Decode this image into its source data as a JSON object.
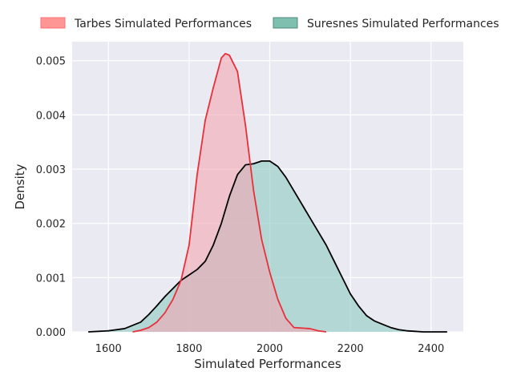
{
  "chart_data": {
    "type": "area",
    "title": "",
    "xlabel": "Simulated Performances",
    "ylabel": "Density",
    "xlim": [
      1510,
      2480
    ],
    "ylim": [
      0,
      0.00535
    ],
    "xticks": [
      1600,
      1800,
      2000,
      2200,
      2400
    ],
    "xtick_labels": [
      "1600",
      "1800",
      "2000",
      "2200",
      "2400"
    ],
    "yticks": [
      0,
      0.001,
      0.002,
      0.003,
      0.004,
      0.005
    ],
    "ytick_labels": [
      "0.000",
      "0.001",
      "0.002",
      "0.003",
      "0.004",
      "0.005"
    ],
    "grid": true,
    "legend_position": "top-center, outside plot",
    "series": [
      {
        "name": "Tarbes Simulated Performances",
        "line_color": "#e8303a",
        "fill_color": "#f4a6b2",
        "fill_opacity": 0.6,
        "legend_swatch_color": "#ff9696",
        "x": [
          1660,
          1680,
          1700,
          1720,
          1740,
          1760,
          1780,
          1800,
          1820,
          1840,
          1860,
          1880,
          1890,
          1900,
          1920,
          1940,
          1960,
          1980,
          2000,
          2020,
          2040,
          2060,
          2080,
          2100,
          2120,
          2140
        ],
        "y": [
          0.0,
          3e-05,
          8e-05,
          0.00018,
          0.00035,
          0.0006,
          0.00095,
          0.0016,
          0.0029,
          0.0039,
          0.0045,
          0.00505,
          0.00513,
          0.0051,
          0.0048,
          0.0038,
          0.0026,
          0.0017,
          0.0011,
          0.0006,
          0.00025,
          8e-05,
          7e-05,
          6e-05,
          2e-05,
          0.0
        ]
      },
      {
        "name": "Suresnes Simulated Performances",
        "line_color": "#000000",
        "fill_color": "#8cc9c2",
        "fill_opacity": 0.6,
        "legend_swatch_color": "#7fbfb0",
        "x": [
          1550,
          1600,
          1640,
          1680,
          1700,
          1720,
          1740,
          1760,
          1780,
          1800,
          1820,
          1840,
          1860,
          1880,
          1900,
          1920,
          1940,
          1960,
          1980,
          2000,
          2020,
          2040,
          2060,
          2080,
          2100,
          2120,
          2140,
          2160,
          2180,
          2200,
          2220,
          2240,
          2260,
          2280,
          2300,
          2320,
          2340,
          2360,
          2380,
          2400,
          2440
        ],
        "y": [
          0.0,
          2e-05,
          6e-05,
          0.00018,
          0.00032,
          0.00048,
          0.00065,
          0.0008,
          0.00095,
          0.00105,
          0.00115,
          0.0013,
          0.0016,
          0.002,
          0.0025,
          0.0029,
          0.00308,
          0.0031,
          0.00315,
          0.00315,
          0.00305,
          0.00285,
          0.0026,
          0.00235,
          0.0021,
          0.00185,
          0.0016,
          0.0013,
          0.001,
          0.0007,
          0.00048,
          0.0003,
          0.0002,
          0.00014,
          8e-05,
          4e-05,
          2e-05,
          1e-05,
          0.0,
          0.0,
          0.0
        ]
      }
    ]
  }
}
